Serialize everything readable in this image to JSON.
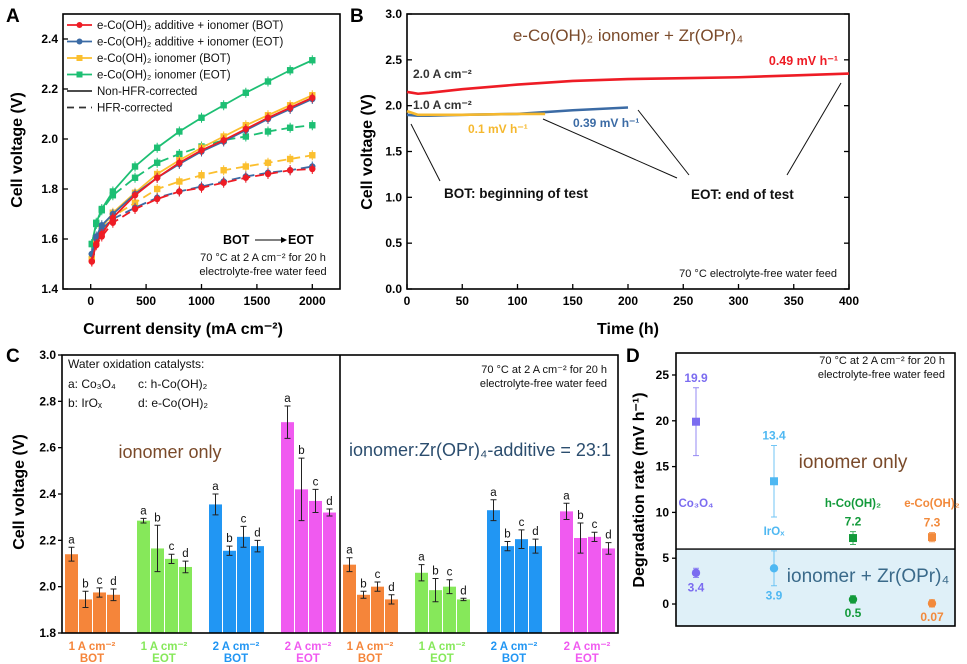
{
  "panel_labels": {
    "a": "A",
    "b": "B",
    "c": "C",
    "d": "D"
  },
  "chart_data": [
    {
      "panel": "A",
      "type": "line",
      "xlabel": "Current density (mA cm⁻²)",
      "ylabel": "Cell voltage (V)",
      "xlim": [
        -250,
        2250
      ],
      "ylim": [
        1.4,
        2.5
      ],
      "xticks": [
        0,
        500,
        1000,
        1500,
        2000
      ],
      "yticks": [
        1.4,
        1.6,
        1.8,
        2.0,
        2.2,
        2.4
      ],
      "grid": false,
      "legend_position": "top-left",
      "legend": [
        {
          "label": "e-Co(OH)₂ additive + ionomer (BOT)",
          "color": "#ee1c25",
          "marker": "circle"
        },
        {
          "label": "e-Co(OH)₂ additive + ionomer (EOT)",
          "color": "#3b6ba5",
          "marker": "circle"
        },
        {
          "label": "e-Co(OH)₂ ionomer (BOT)",
          "color": "#fbbf2e",
          "marker": "square"
        },
        {
          "label": "e-Co(OH)₂ ionomer (EOT)",
          "color": "#1dbf73",
          "marker": "square"
        },
        {
          "label": "Non-HFR-corrected",
          "color": "#333333",
          "style": "solid"
        },
        {
          "label": "HFR-corrected",
          "color": "#333333",
          "style": "dashed"
        }
      ],
      "annotations": {
        "arrow_from": "BOT",
        "arrow_to": "EOT",
        "condition_line1": "70 °C at 2 A cm⁻² for 20 h",
        "condition_line2": "electrolyte-free water feed"
      },
      "x": [
        10,
        50,
        100,
        200,
        400,
        600,
        800,
        1000,
        1200,
        1400,
        1600,
        1800,
        2000
      ],
      "series": [
        {
          "legend_index": 0,
          "style": "solid",
          "values": [
            1.51,
            1.58,
            1.62,
            1.685,
            1.775,
            1.845,
            1.905,
            1.955,
            1.995,
            2.04,
            2.085,
            2.125,
            2.165
          ]
        },
        {
          "legend_index": 0,
          "style": "dashed",
          "values": [
            1.51,
            1.575,
            1.61,
            1.665,
            1.72,
            1.76,
            1.79,
            1.805,
            1.825,
            1.845,
            1.86,
            1.875,
            1.88
          ]
        },
        {
          "legend_index": 1,
          "style": "solid",
          "values": [
            1.54,
            1.61,
            1.655,
            1.7,
            1.78,
            1.845,
            1.9,
            1.95,
            1.99,
            2.035,
            2.08,
            2.12,
            2.16
          ]
        },
        {
          "legend_index": 1,
          "style": "dashed",
          "values": [
            1.54,
            1.6,
            1.64,
            1.68,
            1.725,
            1.765,
            1.79,
            1.81,
            1.83,
            1.85,
            1.865,
            1.875,
            1.89
          ]
        },
        {
          "legend_index": 2,
          "style": "solid",
          "values": [
            1.52,
            1.59,
            1.645,
            1.705,
            1.785,
            1.86,
            1.915,
            1.965,
            2.01,
            2.055,
            2.095,
            2.135,
            2.175
          ]
        },
        {
          "legend_index": 2,
          "style": "dashed",
          "values": [
            1.52,
            1.585,
            1.635,
            1.69,
            1.745,
            1.8,
            1.83,
            1.855,
            1.875,
            1.89,
            1.905,
            1.92,
            1.935
          ]
        },
        {
          "legend_index": 3,
          "style": "solid",
          "values": [
            1.58,
            1.665,
            1.72,
            1.79,
            1.89,
            1.965,
            2.03,
            2.085,
            2.135,
            2.185,
            2.23,
            2.275,
            2.315
          ]
        },
        {
          "legend_index": 3,
          "style": "dashed",
          "values": [
            1.58,
            1.66,
            1.715,
            1.775,
            1.845,
            1.905,
            1.94,
            1.97,
            1.995,
            2.01,
            2.03,
            2.045,
            2.055
          ]
        }
      ]
    },
    {
      "panel": "B",
      "type": "line",
      "title": "e-Co(OH)₂ ionomer + Zr(OPr)₄",
      "xlabel": "Time (h)",
      "ylabel": "Cell voltage (V)",
      "xlim": [
        0,
        400
      ],
      "ylim": [
        0,
        3.0
      ],
      "xticks": [
        0,
        50,
        100,
        150,
        200,
        250,
        300,
        350,
        400
      ],
      "yticks": [
        0.0,
        0.5,
        1.0,
        1.5,
        2.0,
        2.5,
        3.0
      ],
      "grid": false,
      "series": [
        {
          "color": "#ee1c25",
          "x": [
            0,
            5,
            10,
            20,
            50,
            100,
            150,
            200,
            250,
            300,
            350,
            400
          ],
          "values": [
            2.15,
            2.14,
            2.13,
            2.14,
            2.18,
            2.23,
            2.27,
            2.29,
            2.3,
            2.31,
            2.33,
            2.35
          ]
        },
        {
          "color": "#3b6ba5",
          "x": [
            0,
            10,
            20,
            50,
            100,
            150,
            200
          ],
          "values": [
            1.9,
            1.89,
            1.89,
            1.9,
            1.91,
            1.95,
            1.98
          ]
        },
        {
          "color": "#f5b82e",
          "x": [
            0,
            5,
            10,
            20,
            50,
            100,
            125
          ],
          "values": [
            1.94,
            1.92,
            1.9,
            1.9,
            1.9,
            1.91,
            1.91
          ]
        }
      ],
      "annotations": {
        "current_high": "2.0 A cm⁻²",
        "current_low": "1.0 A cm⁻²",
        "rate_red": "0.49 mV h⁻¹",
        "rate_yellow": "0.1 mV h⁻¹",
        "rate_blue": "0.39 mV h⁻¹",
        "bot": "BOT: beginning of test",
        "eot": "EOT: end of test",
        "condition": "70 °C electrolyte-free water feed"
      }
    },
    {
      "panel": "C",
      "type": "bar",
      "ylabel": "Cell voltage (V)",
      "ylim": [
        1.8,
        3.0
      ],
      "yticks": [
        1.8,
        2.0,
        2.2,
        2.4,
        2.6,
        2.8,
        3.0
      ],
      "grid": false,
      "legend_title": "Water oxidation catalysts:",
      "legend": [
        "a: Co₃O₄",
        "b: IrOₓ",
        "c: h-Co(OH)₂",
        "d: e-Co(OH)₂"
      ],
      "bar_letters": [
        "a",
        "b",
        "c",
        "d"
      ],
      "section_labels": [
        "ionomer only",
        "ionomer:Zr(OPr)₄-additive = 23:1"
      ],
      "section_colors": [
        "#7a4a2a",
        "#2b4d6e"
      ],
      "condition_line1": "70 °C at 2 A cm⁻² for 20 h",
      "condition_line2": "electrolyte-free water feed",
      "groups": [
        {
          "section": 0,
          "label1": "1 A cm⁻²",
          "label2": "BOT",
          "color": "#f5853a",
          "values": [
            2.14,
            1.945,
            1.975,
            1.965
          ],
          "errors": [
            0.03,
            0.035,
            0.02,
            0.025
          ]
        },
        {
          "section": 0,
          "label1": "1 A cm⁻²",
          "label2": "EOT",
          "color": "#86e85a",
          "values": [
            2.285,
            2.165,
            2.12,
            2.085
          ],
          "errors": [
            0.01,
            0.1,
            0.02,
            0.025
          ]
        },
        {
          "section": 0,
          "label1": "2 A cm⁻²",
          "label2": "BOT",
          "color": "#2196f3",
          "values": [
            2.355,
            2.155,
            2.215,
            2.175
          ],
          "errors": [
            0.045,
            0.02,
            0.045,
            0.025
          ]
        },
        {
          "section": 0,
          "label1": "2 A cm⁻²",
          "label2": "EOT",
          "color": "#f05af0",
          "values": [
            2.71,
            2.42,
            2.37,
            2.32
          ],
          "errors": [
            0.07,
            0.135,
            0.05,
            0.015
          ]
        },
        {
          "section": 1,
          "label1": "1 A cm⁻²",
          "label2": "BOT",
          "color": "#f5853a",
          "values": [
            2.095,
            1.965,
            2.0,
            1.945
          ],
          "errors": [
            0.03,
            0.015,
            0.02,
            0.02
          ]
        },
        {
          "section": 1,
          "label1": "1 A cm⁻²",
          "label2": "EOT",
          "color": "#86e85a",
          "values": [
            2.06,
            1.985,
            2.0,
            1.945
          ],
          "errors": [
            0.035,
            0.05,
            0.03,
            0.005
          ]
        },
        {
          "section": 1,
          "label1": "2 A cm⁻²",
          "label2": "BOT",
          "color": "#2196f3",
          "values": [
            2.33,
            2.175,
            2.205,
            2.175
          ],
          "errors": [
            0.045,
            0.02,
            0.04,
            0.03
          ]
        },
        {
          "section": 1,
          "label1": "2 A cm⁻²",
          "label2": "EOT",
          "color": "#f05af0",
          "values": [
            2.325,
            2.21,
            2.215,
            2.165
          ],
          "errors": [
            0.035,
            0.065,
            0.02,
            0.025
          ]
        }
      ]
    },
    {
      "panel": "D",
      "type": "scatter",
      "ylabel": "Degradation rate (mV h⁻¹)",
      "ylim": [
        -2.4,
        27.4
      ],
      "yticks": [
        0,
        5,
        10,
        15,
        20,
        25
      ],
      "grid": false,
      "region_divider": 6,
      "region_labels": [
        "ionomer only",
        "ionomer + Zr(OPr)₄"
      ],
      "region_colors": [
        "#7a4a2a",
        "#3a6a8a"
      ],
      "shaded_region_color": "#dff0f8",
      "condition_line1": "70 °C at 2 A cm⁻² for 20 h",
      "condition_line2": "electrolyte-free water feed",
      "categories": [
        {
          "name": "Co₃O₄",
          "color": "#7b6cf0",
          "ionomer_only": 19.9,
          "ionomer_only_err": 3.7,
          "ionomer_only_label": "19.9",
          "with_zr": 3.4,
          "with_zr_err": 0.5,
          "with_zr_label": "3.4"
        },
        {
          "name": "IrOₓ",
          "color": "#4fb8f2",
          "ionomer_only": 13.4,
          "ionomer_only_err": 3.9,
          "ionomer_only_label": "13.4",
          "with_zr": 3.9,
          "with_zr_err": 1.9,
          "with_zr_label": "3.9"
        },
        {
          "name": "h-Co(OH)₂",
          "color": "#129a3a",
          "ionomer_only": 7.2,
          "ionomer_only_err": 0.7,
          "ionomer_only_label": "7.2",
          "with_zr": 0.5,
          "with_zr_err": 0.4,
          "with_zr_label": "0.5"
        },
        {
          "name": "e-Co(OH)₂",
          "color": "#f28a3c",
          "ionomer_only": 7.3,
          "ionomer_only_err": 0.5,
          "ionomer_only_label": "7.3",
          "with_zr": 0.07,
          "with_zr_err": 0.4,
          "with_zr_label": "0.07"
        }
      ]
    }
  ]
}
